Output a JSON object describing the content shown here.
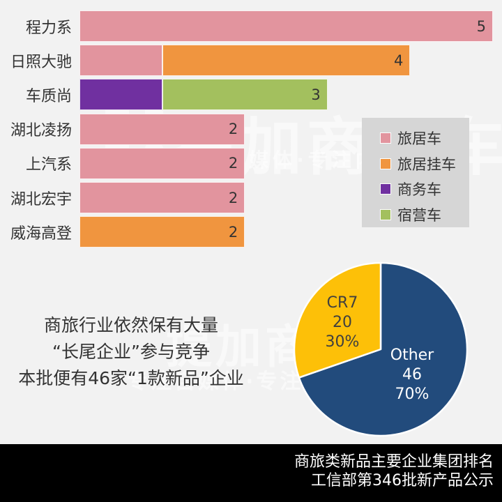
{
  "colors": {
    "background": "#f2f2f2",
    "legend_bg": "#d6d6d6",
    "text": "#333333"
  },
  "watermark": {
    "brand": "提加商用车",
    "tagline": "专注自媒体·专注内容传播"
  },
  "annotation": {
    "lines": [
      "商旅行业依然保有大量",
      "“长尾企业”参与竞争",
      "本批便有46家“1款新品”企业"
    ]
  },
  "footer": {
    "line1": "商旅类新品主要企业集团排名",
    "line2": "工信部第346批新产品公示",
    "bg_color": "#000000",
    "text_color": "#ffffff"
  },
  "chart_data": [
    {
      "type": "bar",
      "orientation": "horizontal-stacked",
      "title": "",
      "xlabel": "",
      "ylabel": "",
      "xlim": [
        0,
        5
      ],
      "grid": false,
      "legend_position": "right-middle",
      "categories": [
        "程力系",
        "日照大驰",
        "车质尚",
        "湖北凌扬",
        "上汽系",
        "湖北宏宇",
        "威海高登"
      ],
      "series": [
        {
          "name": "旅居车",
          "color": "#e2949e",
          "values": [
            5,
            1,
            0,
            2,
            2,
            2,
            0
          ]
        },
        {
          "name": "旅居挂车",
          "color": "#f0953f",
          "values": [
            0,
            3,
            0,
            0,
            0,
            0,
            2
          ]
        },
        {
          "name": "商务车",
          "color": "#7030a0",
          "values": [
            0,
            0,
            1,
            0,
            0,
            0,
            0
          ]
        },
        {
          "name": "宿营车",
          "color": "#a3c05e",
          "values": [
            0,
            0,
            2,
            0,
            0,
            0,
            0
          ]
        }
      ],
      "totals": [
        5,
        4,
        3,
        2,
        2,
        2,
        2
      ]
    },
    {
      "type": "pie",
      "start_angle": "12-oclock",
      "direction": "clockwise",
      "slices": [
        {
          "label": "Other",
          "value": 46,
          "percent": "70%",
          "color": "#224b7c",
          "label_color": "#ffffff"
        },
        {
          "label": "CR7",
          "value": 20,
          "percent": "30%",
          "color": "#fdc008",
          "label_color": "#3f3f3f"
        }
      ]
    }
  ]
}
